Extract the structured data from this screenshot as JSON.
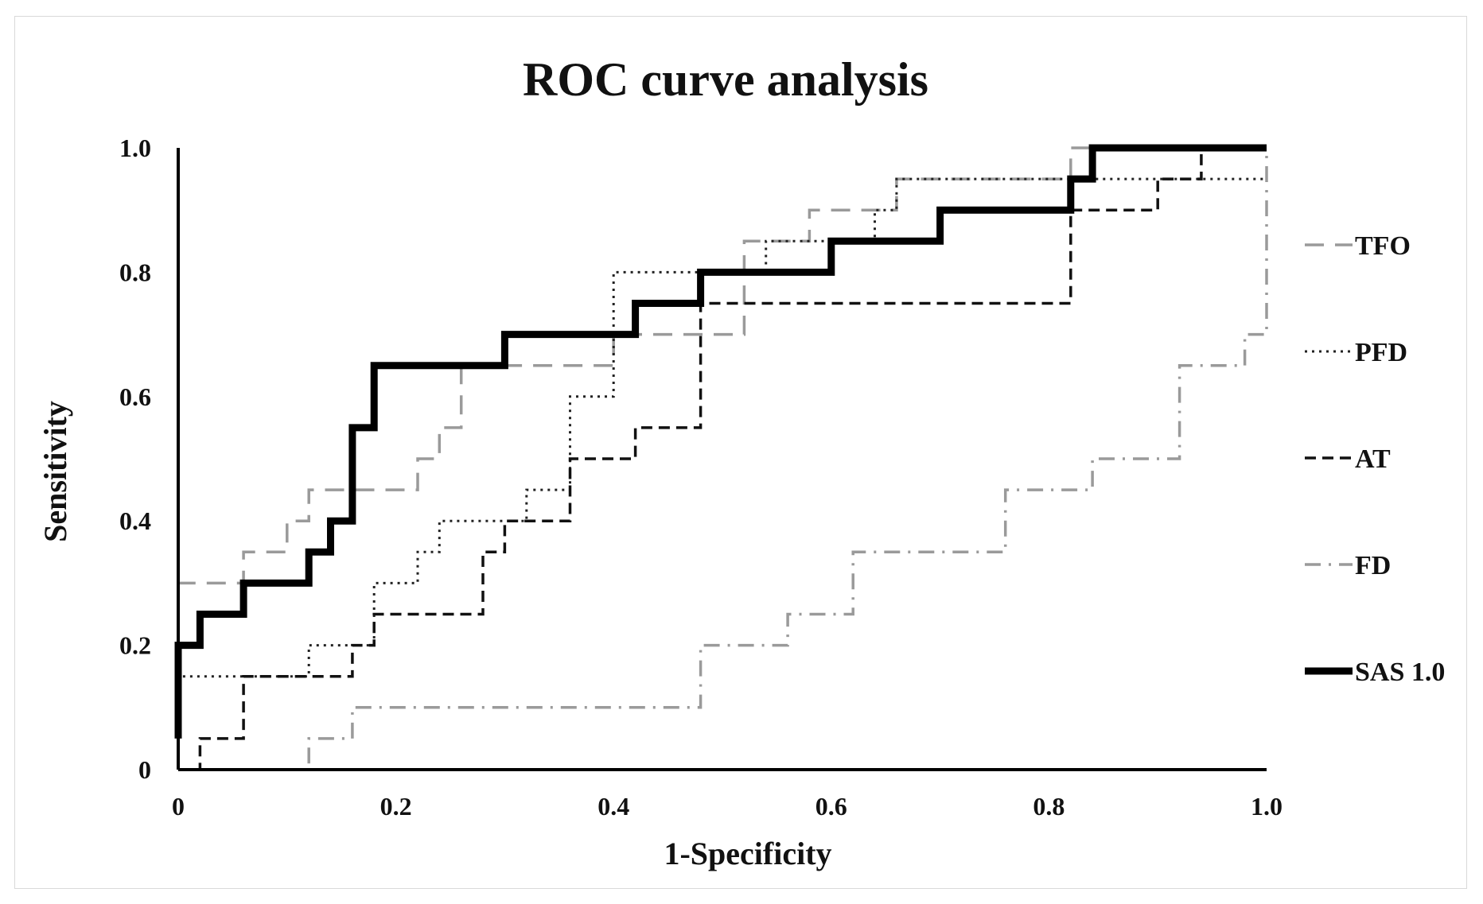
{
  "chart_data": {
    "type": "line",
    "title": "ROC curve analysis",
    "xlabel": "1-Specificity",
    "ylabel": "Sensitivity",
    "xlim": [
      0,
      1
    ],
    "ylim": [
      0,
      1
    ],
    "x_ticks": [
      {
        "value": 0,
        "label": "0"
      },
      {
        "value": 0.2,
        "label": "0.2"
      },
      {
        "value": 0.4,
        "label": "0.4"
      },
      {
        "value": 0.6,
        "label": "0.6"
      },
      {
        "value": 0.8,
        "label": "0.8"
      },
      {
        "value": 1.0,
        "label": "1.0"
      }
    ],
    "y_ticks": [
      {
        "value": 0,
        "label": "0"
      },
      {
        "value": 0.2,
        "label": "0.2"
      },
      {
        "value": 0.4,
        "label": "0.4"
      },
      {
        "value": 0.6,
        "label": "0.6"
      },
      {
        "value": 0.8,
        "label": "0.8"
      },
      {
        "value": 1.0,
        "label": "1.0"
      }
    ],
    "grid": false,
    "legend_position": "right",
    "series": [
      {
        "name": "TFO",
        "style": "long-dash",
        "color": "#9a9a9a",
        "x": [
          0,
          0,
          0.06,
          0.06,
          0.1,
          0.1,
          0.12,
          0.12,
          0.22,
          0.22,
          0.24,
          0.24,
          0.26,
          0.26,
          0.4,
          0.4,
          0.52,
          0.52,
          0.58,
          0.58,
          0.66,
          0.66,
          0.82,
          0.82,
          1.0
        ],
        "y": [
          0.2,
          0.3,
          0.3,
          0.35,
          0.35,
          0.4,
          0.4,
          0.45,
          0.45,
          0.5,
          0.5,
          0.55,
          0.55,
          0.65,
          0.65,
          0.7,
          0.7,
          0.85,
          0.85,
          0.9,
          0.9,
          0.95,
          0.95,
          1.0,
          1.0
        ]
      },
      {
        "name": "PFD",
        "style": "dotted",
        "color": "#222222",
        "x": [
          0,
          0,
          0.12,
          0.12,
          0.18,
          0.18,
          0.22,
          0.22,
          0.24,
          0.24,
          0.32,
          0.32,
          0.36,
          0.36,
          0.4,
          0.4,
          0.48,
          0.48,
          0.54,
          0.54,
          0.64,
          0.64,
          0.66,
          0.66,
          1.0
        ],
        "y": [
          0.1,
          0.15,
          0.15,
          0.2,
          0.2,
          0.3,
          0.3,
          0.35,
          0.35,
          0.4,
          0.4,
          0.45,
          0.45,
          0.6,
          0.6,
          0.8,
          0.8,
          0.8,
          0.8,
          0.85,
          0.85,
          0.9,
          0.9,
          0.95,
          0.95
        ]
      },
      {
        "name": "AT",
        "style": "dashed",
        "color": "#111111",
        "x": [
          0,
          0.02,
          0.02,
          0.06,
          0.06,
          0.16,
          0.16,
          0.18,
          0.18,
          0.28,
          0.28,
          0.3,
          0.3,
          0.36,
          0.36,
          0.42,
          0.42,
          0.48,
          0.48,
          0.82,
          0.82,
          0.9,
          0.9,
          0.94,
          0.94,
          1.0
        ],
        "y": [
          0,
          0,
          0.05,
          0.05,
          0.15,
          0.15,
          0.2,
          0.2,
          0.25,
          0.25,
          0.35,
          0.35,
          0.4,
          0.4,
          0.5,
          0.5,
          0.55,
          0.55,
          0.75,
          0.75,
          0.9,
          0.9,
          0.95,
          0.95,
          1.0,
          1.0
        ]
      },
      {
        "name": "FD",
        "style": "dash-dot",
        "color": "#9a9a9a",
        "x": [
          0,
          0.12,
          0.12,
          0.16,
          0.16,
          0.48,
          0.48,
          0.56,
          0.56,
          0.62,
          0.62,
          0.76,
          0.76,
          0.84,
          0.84,
          0.92,
          0.92,
          0.98,
          0.98,
          1.0,
          1.0
        ],
        "y": [
          0,
          0,
          0.05,
          0.05,
          0.1,
          0.1,
          0.2,
          0.2,
          0.25,
          0.25,
          0.35,
          0.35,
          0.45,
          0.45,
          0.5,
          0.5,
          0.65,
          0.65,
          0.7,
          0.7,
          1.0
        ]
      },
      {
        "name": "SAS 1.0",
        "style": "solid-bold",
        "color": "#000000",
        "x": [
          0,
          0,
          0.02,
          0.02,
          0.06,
          0.06,
          0.12,
          0.12,
          0.14,
          0.14,
          0.16,
          0.16,
          0.18,
          0.18,
          0.3,
          0.3,
          0.42,
          0.42,
          0.48,
          0.48,
          0.6,
          0.6,
          0.7,
          0.7,
          0.82,
          0.82,
          0.84,
          0.84,
          1.0
        ],
        "y": [
          0.05,
          0.2,
          0.2,
          0.25,
          0.25,
          0.3,
          0.3,
          0.35,
          0.35,
          0.4,
          0.4,
          0.55,
          0.55,
          0.65,
          0.65,
          0.7,
          0.7,
          0.75,
          0.75,
          0.8,
          0.8,
          0.85,
          0.85,
          0.9,
          0.9,
          0.95,
          0.95,
          1.0,
          1.0
        ]
      }
    ]
  }
}
